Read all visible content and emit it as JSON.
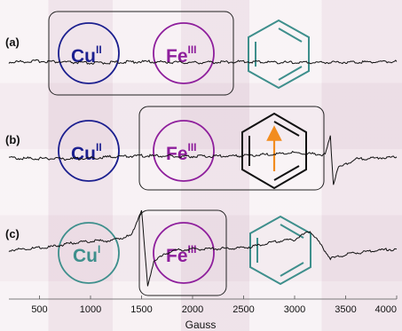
{
  "chart_data": {
    "type": "line",
    "xlabel": "Gauss",
    "ylabel": "",
    "xlim": [
      200,
      4000
    ],
    "xticks": [
      500,
      1000,
      1500,
      2000,
      2500,
      3000,
      3500,
      4000
    ],
    "grid": false,
    "series": [
      {
        "name": "(a)",
        "panel_label": "(a)",
        "points": [
          [
            200,
            0
          ],
          [
            500,
            0.1
          ],
          [
            1000,
            -0.1
          ],
          [
            1500,
            0.05
          ],
          [
            2000,
            -0.05
          ],
          [
            2500,
            0.05
          ],
          [
            3000,
            -0.05
          ],
          [
            3500,
            0
          ],
          [
            4000,
            0.05
          ]
        ],
        "annotations": {
          "circles": [
            {
              "text": "Cu",
              "sup": "II",
              "color": "#1b1f8f"
            },
            {
              "text": "Fe",
              "sup": "III",
              "color": "#8e1e9c"
            }
          ],
          "ring": {
            "color": "#3e8f8c",
            "spin_arrow": false
          }
        }
      },
      {
        "name": "(b)",
        "panel_label": "(b)",
        "points": [
          [
            200,
            0
          ],
          [
            800,
            -0.1
          ],
          [
            1200,
            0.1
          ],
          [
            1500,
            0.2
          ],
          [
            2000,
            0.15
          ],
          [
            2500,
            0.2
          ],
          [
            3000,
            0.5
          ],
          [
            3300,
            0.3
          ],
          [
            3350,
            2
          ],
          [
            3380,
            -2.5
          ],
          [
            3420,
            -1
          ],
          [
            3600,
            -0.1
          ],
          [
            4000,
            0.1
          ]
        ],
        "annotations": {
          "circles": [
            {
              "text": "Cu",
              "sup": "II",
              "color": "#1b1f8f"
            },
            {
              "text": "Fe",
              "sup": "III",
              "color": "#8e1e9c"
            }
          ],
          "ring": {
            "color": "#111111",
            "spin_arrow": true,
            "arrow_color": "#f28c1e"
          }
        }
      },
      {
        "name": "(c)",
        "panel_label": "(c)",
        "points": [
          [
            200,
            0
          ],
          [
            600,
            0.3
          ],
          [
            900,
            0.8
          ],
          [
            1200,
            0.9
          ],
          [
            1400,
            1.4
          ],
          [
            1500,
            3.8
          ],
          [
            1560,
            -3.4
          ],
          [
            1620,
            -1
          ],
          [
            1800,
            0
          ],
          [
            2000,
            0.1
          ],
          [
            2500,
            0.2
          ],
          [
            2800,
            0.8
          ],
          [
            3000,
            1
          ],
          [
            3150,
            1.8
          ],
          [
            3250,
            0.6
          ],
          [
            3350,
            -0.8
          ],
          [
            3500,
            -0.4
          ],
          [
            3800,
            0
          ],
          [
            4000,
            0.1
          ]
        ],
        "annotations": {
          "circles": [
            {
              "text": "Cu",
              "sup": "I",
              "color": "#3e8f8c"
            },
            {
              "text": "Fe",
              "sup": "III",
              "color": "#8e1e9c"
            }
          ],
          "ring": {
            "color": "#3e8f8c",
            "spin_arrow": false
          }
        }
      }
    ]
  }
}
